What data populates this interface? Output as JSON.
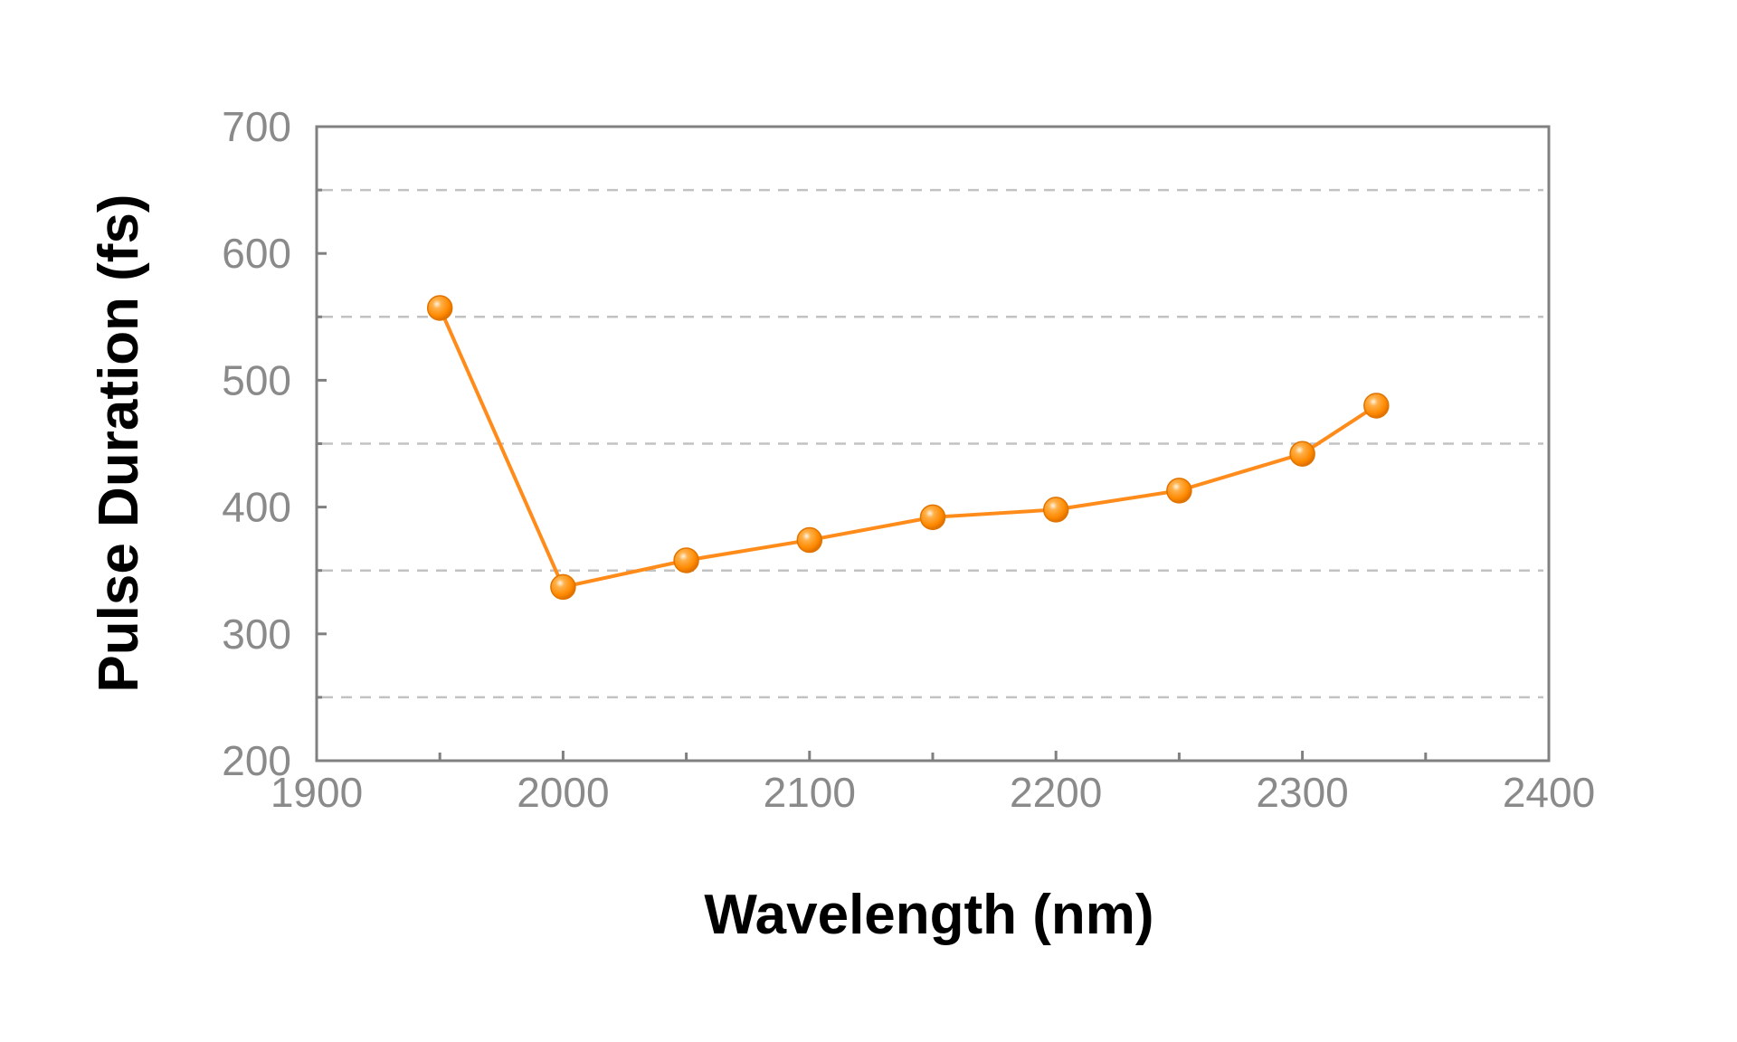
{
  "chart_data": {
    "type": "line",
    "xlabel": "Wavelength (nm)",
    "ylabel": "Pulse Duration (fs)",
    "xlim": [
      1900,
      2400
    ],
    "ylim": [
      200,
      700
    ],
    "xticks": [
      1900,
      2000,
      2100,
      2200,
      2300,
      2400
    ],
    "yticks": [
      200,
      300,
      400,
      500,
      600,
      700
    ],
    "x_minor_ticks": [
      1950,
      2050,
      2150,
      2250,
      2350
    ],
    "y_gridlines": [
      250,
      350,
      450,
      550,
      650
    ],
    "grid": "horizontal dashed",
    "color": "#ff8c1a",
    "marker_color": "#ff8a00",
    "series": [
      {
        "x": [
          1950,
          2000,
          2050,
          2100,
          2150,
          2200,
          2250,
          2300,
          2330
        ],
        "y": [
          557,
          337,
          358,
          374,
          392,
          398,
          413,
          442,
          480
        ]
      }
    ]
  }
}
